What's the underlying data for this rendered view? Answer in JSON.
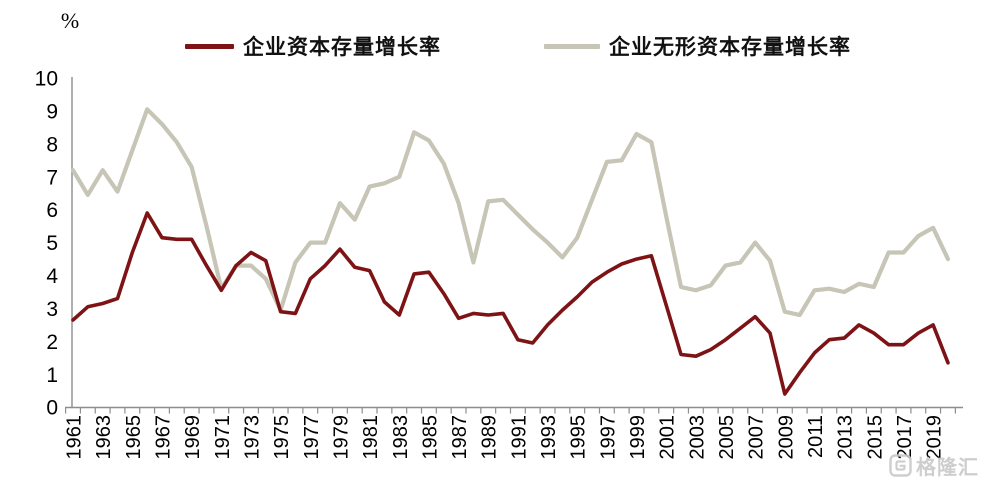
{
  "legend": {
    "items": [
      {
        "label": "企业资本存量增长率",
        "color": "#7D1315"
      },
      {
        "label": "企业无形资本存量增长率",
        "color": "#C6C5B6"
      }
    ]
  },
  "y_axis": {
    "unit": "%",
    "tick_labels": [
      "0",
      "1",
      "2",
      "3",
      "4",
      "5",
      "6",
      "7",
      "8",
      "9",
      "10"
    ]
  },
  "watermark": {
    "brand": "格隆汇"
  },
  "chart_data": {
    "type": "line",
    "title": "",
    "ylabel": "%",
    "ylim": [
      0,
      10
    ],
    "grid": false,
    "legend_position": "top",
    "x_tick_step": 2,
    "x": [
      1961,
      1962,
      1963,
      1964,
      1965,
      1966,
      1967,
      1968,
      1969,
      1970,
      1971,
      1972,
      1973,
      1974,
      1975,
      1976,
      1977,
      1978,
      1979,
      1980,
      1981,
      1982,
      1983,
      1984,
      1985,
      1986,
      1987,
      1988,
      1989,
      1990,
      1991,
      1992,
      1993,
      1994,
      1995,
      1996,
      1997,
      1998,
      1999,
      2000,
      2001,
      2002,
      2003,
      2004,
      2005,
      2006,
      2007,
      2008,
      2009,
      2010,
      2011,
      2012,
      2013,
      2014,
      2015,
      2016,
      2017,
      2018,
      2019,
      2020
    ],
    "series": [
      {
        "name": "企业资本存量增长率",
        "color": "#7D1315",
        "stroke_width": 3.6,
        "values": [
          2.65,
          3.05,
          3.15,
          3.3,
          4.7,
          5.9,
          5.15,
          5.1,
          5.1,
          4.3,
          3.55,
          4.3,
          4.7,
          4.45,
          2.9,
          2.85,
          3.9,
          4.3,
          4.8,
          4.25,
          4.15,
          3.2,
          2.8,
          4.05,
          4.1,
          3.45,
          2.7,
          2.85,
          2.8,
          2.85,
          2.05,
          1.95,
          2.5,
          2.95,
          3.35,
          3.8,
          4.1,
          4.35,
          4.5,
          4.6,
          3.1,
          1.6,
          1.55,
          1.75,
          2.05,
          2.4,
          2.75,
          2.25,
          0.4,
          1.05,
          1.65,
          2.05,
          2.1,
          2.5,
          2.25,
          1.9,
          1.9,
          2.25,
          2.5,
          1.35
        ]
      },
      {
        "name": "企业无形资本存量增长率",
        "color": "#C6C5B6",
        "stroke_width": 4.2,
        "values": [
          7.2,
          6.45,
          7.2,
          6.55,
          7.8,
          9.05,
          8.6,
          8.05,
          7.3,
          5.5,
          3.6,
          4.3,
          4.3,
          3.9,
          2.95,
          4.4,
          5.0,
          5.0,
          6.2,
          5.7,
          6.7,
          6.8,
          7.0,
          8.35,
          8.1,
          7.4,
          6.2,
          4.4,
          6.25,
          6.3,
          5.85,
          5.4,
          5.0,
          4.55,
          5.15,
          6.3,
          7.45,
          7.5,
          8.3,
          8.05,
          5.8,
          3.65,
          3.55,
          3.7,
          4.3,
          4.4,
          5.0,
          4.45,
          2.9,
          2.8,
          3.55,
          3.6,
          3.5,
          3.75,
          3.65,
          4.7,
          4.7,
          5.2,
          5.45,
          4.5
        ]
      }
    ]
  }
}
